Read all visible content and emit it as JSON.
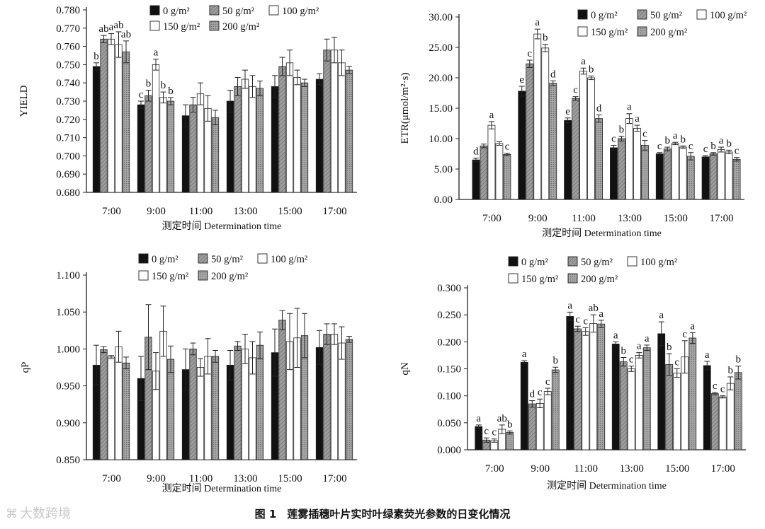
{
  "caption": "图 1　莲雾插穗叶片实时叶绿素荧光参数的日变化情况",
  "watermark": {
    "text": "大数跨境"
  },
  "legend_labels": [
    "0 g/m²",
    "50 g/m²",
    "100 g/m²",
    "150 g/m²",
    "200 g/m²"
  ],
  "colors": {
    "s0": "#111111",
    "s1": "#9a9a9a",
    "s2": "#ffffff",
    "s3": "#ffffff",
    "s4": "#8f8f8f",
    "axis": "#222222"
  },
  "chart_data": [
    {
      "type": "bar",
      "id": "yield",
      "xlabel": "测定时间 Determination time",
      "ylabel": "YIELD",
      "ylim": [
        0.68,
        0.78
      ],
      "yticks": [
        0.68,
        0.69,
        0.7,
        0.71,
        0.72,
        0.73,
        0.74,
        0.75,
        0.76,
        0.77,
        0.78
      ],
      "ytick_labels": [
        "0.680",
        "0.690",
        "0.700",
        "0.710",
        "0.720",
        "0.730",
        "0.740",
        "0.750",
        "0.760",
        "0.770",
        "0.780"
      ],
      "categories": [
        "7:00",
        "9:00",
        "11:00",
        "13:00",
        "15:00",
        "17:00"
      ],
      "series": [
        {
          "name": "0 g/m²",
          "values": [
            0.749,
            0.728,
            0.722,
            0.73,
            0.738,
            0.742
          ],
          "errors": [
            0.002,
            0.002,
            0.006,
            0.006,
            0.006,
            0.003
          ]
        },
        {
          "name": "50 g/m²",
          "values": [
            0.764,
            0.733,
            0.728,
            0.738,
            0.749,
            0.758
          ],
          "errors": [
            0.002,
            0.003,
            0.004,
            0.005,
            0.005,
            0.006
          ]
        },
        {
          "name": "100 g/m²",
          "values": [
            0.764,
            0.75,
            0.734,
            0.742,
            0.751,
            0.758
          ],
          "errors": [
            0.003,
            0.003,
            0.006,
            0.005,
            0.007,
            0.007
          ]
        },
        {
          "name": "150 g/m²",
          "values": [
            0.761,
            0.732,
            0.726,
            0.738,
            0.743,
            0.751
          ],
          "errors": [
            0.007,
            0.003,
            0.007,
            0.006,
            0.004,
            0.007
          ]
        },
        {
          "name": "200 g/m²",
          "values": [
            0.757,
            0.73,
            0.721,
            0.737,
            0.74,
            0.747
          ],
          "errors": [
            0.006,
            0.002,
            0.004,
            0.004,
            0.002,
            0.002
          ]
        }
      ],
      "significance": [
        [
          "b",
          "ab",
          "a",
          "ab",
          "ab"
        ],
        [
          "c",
          "b",
          "a",
          "b",
          "b"
        ],
        [],
        [],
        [],
        []
      ],
      "legend": {
        "rows": [
          [
            0,
            1,
            2
          ],
          [
            3,
            4
          ]
        ]
      }
    },
    {
      "type": "bar",
      "id": "etr",
      "xlabel": "测定时间 Determination time",
      "ylabel": "ETR(μmol/m²·s)",
      "ylim": [
        0,
        30
      ],
      "yticks": [
        0,
        5,
        10,
        15,
        20,
        25,
        30
      ],
      "ytick_labels": [
        "0.00",
        "5.00",
        "10.00",
        "15.00",
        "20.00",
        "25.00",
        "30.00"
      ],
      "categories": [
        "7:00",
        "9:00",
        "11:00",
        "13:00",
        "15:00",
        "17:00"
      ],
      "series": [
        {
          "name": "0 g/m²",
          "values": [
            6.5,
            17.8,
            13.0,
            8.5,
            7.5,
            7.0
          ],
          "errors": [
            0.3,
            0.8,
            0.4,
            0.4,
            0.2,
            0.2
          ]
        },
        {
          "name": "50 g/m²",
          "values": [
            8.8,
            22.3,
            16.6,
            10.0,
            8.3,
            7.5
          ],
          "errors": [
            0.3,
            0.6,
            0.3,
            0.4,
            0.3,
            0.2
          ]
        },
        {
          "name": "100 g/m²",
          "values": [
            12.2,
            27.2,
            21.1,
            13.3,
            9.2,
            8.2
          ],
          "errors": [
            0.6,
            0.8,
            0.5,
            0.8,
            0.2,
            0.4
          ]
        },
        {
          "name": "150 g/m²",
          "values": [
            9.2,
            24.9,
            20.0,
            11.7,
            8.6,
            7.8
          ],
          "errors": [
            0.3,
            0.6,
            0.3,
            0.5,
            0.2,
            0.3
          ]
        },
        {
          "name": "200 g/m²",
          "values": [
            7.4,
            19.1,
            13.3,
            8.9,
            7.1,
            6.6
          ],
          "errors": [
            0.2,
            0.4,
            0.6,
            0.8,
            0.6,
            0.3
          ]
        }
      ],
      "significance": [
        [
          "d",
          "",
          "a",
          "",
          "c"
        ],
        [
          "e",
          "c",
          "a",
          "b",
          "d"
        ],
        [
          "e",
          "c",
          "a",
          "b",
          "d"
        ],
        [
          "c",
          "b",
          "a",
          "a",
          "c"
        ],
        [
          "c",
          "b",
          "a",
          "b",
          "c"
        ],
        [
          "c",
          "b",
          "a",
          "b",
          "c"
        ]
      ],
      "legend": {
        "rows": [
          [
            0,
            1,
            2
          ],
          [
            3,
            4
          ]
        ]
      }
    },
    {
      "type": "bar",
      "id": "qp",
      "xlabel": "测定时间 Determination time",
      "ylabel": "qP",
      "ylim": [
        0.85,
        1.1
      ],
      "yticks": [
        0.85,
        0.9,
        0.95,
        1.0,
        1.05,
        1.1
      ],
      "ytick_labels": [
        "0.850",
        "0.900",
        "0.950",
        "1.000",
        "1.050",
        "1.100"
      ],
      "categories": [
        "7:00",
        "9:00",
        "11:00",
        "13:00",
        "15:00",
        "17:00"
      ],
      "series": [
        {
          "name": "0 g/m²",
          "values": [
            0.978,
            0.96,
            0.972,
            0.978,
            0.995,
            1.002
          ],
          "errors": [
            0.027,
            0.03,
            0.028,
            0.02,
            0.032,
            0.023
          ]
        },
        {
          "name": "50 g/m²",
          "values": [
            0.999,
            1.016,
            1.0,
            1.004,
            1.039,
            1.02
          ],
          "errors": [
            0.004,
            0.044,
            0.008,
            0.006,
            0.013,
            0.014
          ]
        },
        {
          "name": "100 g/m²",
          "values": [
            0.989,
            0.97,
            0.975,
            1.0,
            1.01,
            1.02
          ],
          "errors": [
            0.002,
            0.025,
            0.012,
            0.02,
            0.038,
            0.014
          ]
        },
        {
          "name": "150 g/m²",
          "values": [
            1.003,
            1.024,
            0.99,
            0.988,
            1.015,
            1.008
          ],
          "errors": [
            0.021,
            0.034,
            0.024,
            0.022,
            0.04,
            0.022
          ]
        },
        {
          "name": "200 g/m²",
          "values": [
            0.981,
            0.986,
            0.99,
            1.005,
            1.018,
            1.013
          ],
          "errors": [
            0.008,
            0.018,
            0.008,
            0.018,
            0.03,
            0.004
          ]
        }
      ],
      "significance": [
        [],
        [],
        [],
        [],
        [],
        []
      ],
      "legend": {
        "rows": [
          [
            0,
            1,
            2
          ],
          [
            3,
            4
          ]
        ]
      }
    },
    {
      "type": "bar",
      "id": "qn",
      "xlabel": "测定时间 Determination time",
      "ylabel": "qN",
      "ylim": [
        0,
        0.3
      ],
      "yticks": [
        0,
        0.05,
        0.1,
        0.15,
        0.2,
        0.25,
        0.3
      ],
      "ytick_labels": [
        "0.000",
        "0.050",
        "0.100",
        "0.150",
        "0.200",
        "0.250",
        "0.300"
      ],
      "categories": [
        "7:00",
        "9:00",
        "11:00",
        "13:00",
        "15:00",
        "17:00"
      ],
      "series": [
        {
          "name": "0 g/m²",
          "values": [
            0.043,
            0.162,
            0.247,
            0.196,
            0.215,
            0.156
          ],
          "errors": [
            0.003,
            0.003,
            0.008,
            0.004,
            0.022,
            0.008
          ]
        },
        {
          "name": "50 g/m²",
          "values": [
            0.018,
            0.085,
            0.224,
            0.163,
            0.158,
            0.104
          ],
          "errors": [
            0.004,
            0.006,
            0.005,
            0.008,
            0.02,
            0.002
          ]
        },
        {
          "name": "100 g/m²",
          "values": [
            0.017,
            0.086,
            0.219,
            0.15,
            0.142,
            0.098
          ],
          "errors": [
            0.003,
            0.008,
            0.007,
            0.005,
            0.008,
            0.002
          ]
        },
        {
          "name": "150 g/m²",
          "values": [
            0.038,
            0.108,
            0.234,
            0.175,
            0.172,
            0.123
          ],
          "errors": [
            0.008,
            0.006,
            0.016,
            0.005,
            0.03,
            0.012
          ]
        },
        {
          "name": "200 g/m²",
          "values": [
            0.032,
            0.148,
            0.233,
            0.189,
            0.207,
            0.143
          ],
          "errors": [
            0.003,
            0.005,
            0.007,
            0.005,
            0.01,
            0.012
          ]
        }
      ],
      "significance": [
        [
          "a",
          "c",
          "c",
          "ab",
          "b"
        ],
        [
          "a",
          "d",
          "c",
          "c",
          "b"
        ],
        [
          "a",
          "c",
          "c",
          "ab",
          "a"
        ],
        [
          "a",
          "b",
          "c",
          "a",
          "a"
        ],
        [
          "a",
          "b",
          "c",
          "c",
          "a"
        ],
        [
          "a",
          "c",
          "c",
          "b",
          "b"
        ]
      ],
      "legend": {
        "rows": [
          [
            0,
            1,
            2
          ],
          [
            3,
            4
          ]
        ]
      }
    }
  ]
}
